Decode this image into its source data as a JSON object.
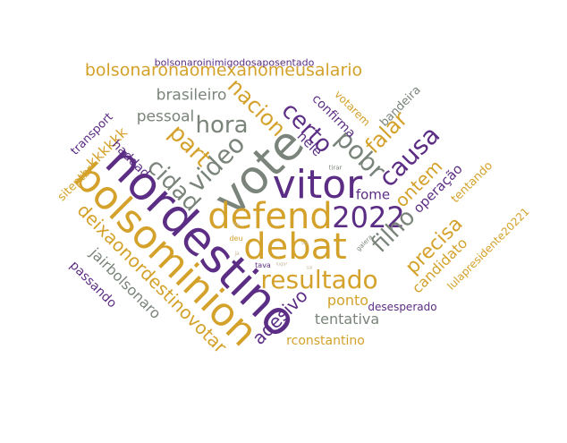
{
  "colors": {
    "gold": "#D4A22B",
    "purple": "#5C2D84",
    "gray": "#7A847A",
    "pale": "#C7B99C"
  },
  "words": [
    {
      "text": "nordestino",
      "color": "purple"
    },
    {
      "text": "bolsominion",
      "color": "gold"
    },
    {
      "text": "vote",
      "color": "gray"
    },
    {
      "text": "vitor",
      "color": "purple"
    },
    {
      "text": "defend",
      "color": "gold"
    },
    {
      "text": "debat",
      "color": "gold"
    },
    {
      "text": "2022",
      "color": "purple"
    },
    {
      "text": "resultado",
      "color": "gold"
    },
    {
      "text": "video",
      "color": "gray"
    },
    {
      "text": "pobr",
      "color": "gray"
    },
    {
      "text": "filho",
      "color": "gray"
    },
    {
      "text": "causa",
      "color": "purple"
    },
    {
      "text": "hora",
      "color": "gray"
    },
    {
      "text": "cidad",
      "color": "gray"
    },
    {
      "text": "part",
      "color": "gold"
    },
    {
      "text": "certo",
      "color": "purple"
    },
    {
      "text": "nacion",
      "color": "gold"
    },
    {
      "text": "falar",
      "color": "gold"
    },
    {
      "text": "deixaonordestinovotar",
      "color": "gold"
    },
    {
      "text": "bolsonaronaomexanomeusalario",
      "color": "gold"
    },
    {
      "text": "precisa",
      "color": "gold"
    },
    {
      "text": "ontem",
      "color": "gold"
    },
    {
      "text": "adesivo",
      "color": "purple"
    },
    {
      "text": "brasileiro",
      "color": "gray"
    },
    {
      "text": "pessoal",
      "color": "gray"
    },
    {
      "text": "tentativa",
      "color": "gray"
    },
    {
      "text": "ponto",
      "color": "gold"
    },
    {
      "text": "candidato",
      "color": "gold"
    },
    {
      "text": "jairbolsonaro",
      "color": "gray"
    },
    {
      "text": "kkkkkk",
      "color": "gold"
    },
    {
      "text": "fome",
      "color": "purple"
    },
    {
      "text": "nele",
      "color": "purple"
    },
    {
      "text": "confirma",
      "color": "purple"
    },
    {
      "text": "operação",
      "color": "purple"
    },
    {
      "text": "haddad",
      "color": "purple"
    },
    {
      "text": "passando",
      "color": "purple"
    },
    {
      "text": "rconstantino",
      "color": "gold"
    },
    {
      "text": "transport",
      "color": "purple"
    },
    {
      "text": "tentando",
      "color": "gold"
    },
    {
      "text": "bandeira",
      "color": "gray"
    },
    {
      "text": "votarem",
      "color": "gold"
    },
    {
      "text": "siteptbr",
      "color": "gold"
    },
    {
      "text": "desesperado",
      "color": "purple"
    },
    {
      "text": "lulapresidente20221",
      "color": "gold"
    },
    {
      "text": "bolsonaroinimigodosaposentado",
      "color": "purple"
    },
    {
      "text": "deu",
      "color": "gold"
    },
    {
      "text": "tava",
      "color": "purple"
    },
    {
      "text": "galera",
      "color": "gray"
    },
    {
      "text": "tirar",
      "color": "gray"
    },
    {
      "text": "lugar",
      "color": "pale"
    },
    {
      "text": "sai",
      "color": "pale"
    },
    {
      "text": "te",
      "color": "pale"
    },
    {
      "text": "ja",
      "color": "pale"
    },
    {
      "text": "ver",
      "color": "pale"
    }
  ]
}
